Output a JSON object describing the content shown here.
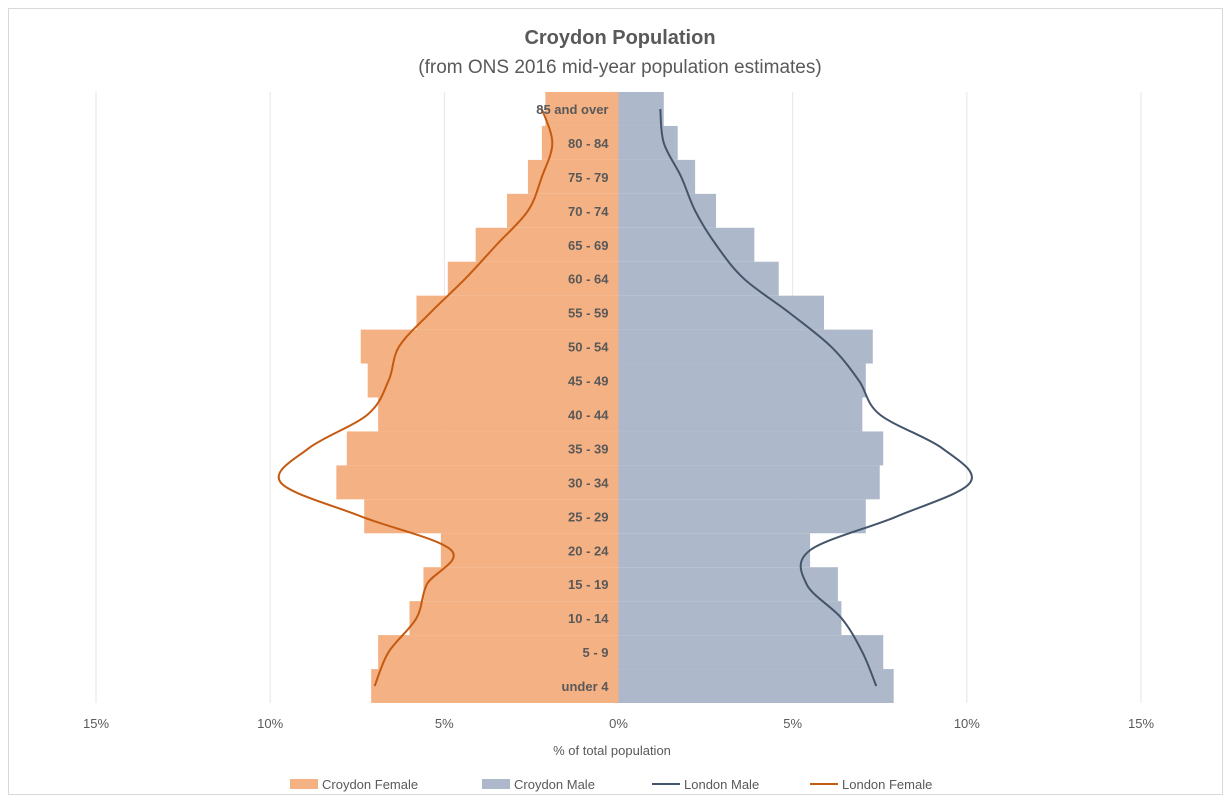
{
  "chart_data": {
    "type": "bar",
    "orientation": "horizontal-pyramid",
    "title": "Croydon Population",
    "subtitle": "(from ONS 2016 mid-year population estimates)",
    "xlabel": "% of total population",
    "xlim": [
      -15,
      15
    ],
    "xticks": [
      -15,
      -10,
      -5,
      0,
      5,
      10,
      15
    ],
    "xtick_labels": [
      "15%",
      "10%",
      "5%",
      "0%",
      "5%",
      "10%",
      "15%"
    ],
    "grid": true,
    "legend_position": "bottom",
    "categories": [
      "under 4",
      "5 - 9",
      "10 - 14",
      "15 - 19",
      "20 - 24",
      "25 - 29",
      "30 - 34",
      "35 - 39",
      "40 - 44",
      "45 - 49",
      "50 - 54",
      "55 - 59",
      "60 - 64",
      "65 - 69",
      "70 - 74",
      "75 - 79",
      "80 - 84",
      "85 and over"
    ],
    "series": [
      {
        "name": "Croydon Female",
        "kind": "bar",
        "side": "left",
        "color": "#F4B183",
        "values": [
          7.1,
          6.9,
          6.0,
          5.6,
          5.1,
          7.3,
          8.1,
          7.8,
          6.9,
          7.2,
          7.4,
          5.8,
          4.9,
          4.1,
          3.2,
          2.6,
          2.2,
          2.1
        ]
      },
      {
        "name": "Croydon Male",
        "kind": "bar",
        "side": "right",
        "color": "#ADB9CA",
        "values": [
          7.9,
          7.6,
          6.4,
          6.3,
          5.5,
          7.1,
          7.5,
          7.6,
          7.0,
          7.1,
          7.3,
          5.9,
          4.6,
          3.9,
          2.8,
          2.2,
          1.7,
          1.3
        ]
      },
      {
        "name": "London Male",
        "kind": "line",
        "side": "right",
        "color": "#44546A",
        "values": [
          7.4,
          7.0,
          6.4,
          5.4,
          5.5,
          8.0,
          10.1,
          9.3,
          7.5,
          6.9,
          6.1,
          4.9,
          3.6,
          2.8,
          2.2,
          1.8,
          1.3,
          1.2
        ]
      },
      {
        "name": "London Female",
        "kind": "line",
        "side": "left",
        "color": "#C55A11",
        "values": [
          7.0,
          6.6,
          5.8,
          5.5,
          4.8,
          7.4,
          9.7,
          8.9,
          7.2,
          6.6,
          6.3,
          5.4,
          4.4,
          3.5,
          2.6,
          2.2,
          1.9,
          2.2
        ]
      }
    ]
  }
}
